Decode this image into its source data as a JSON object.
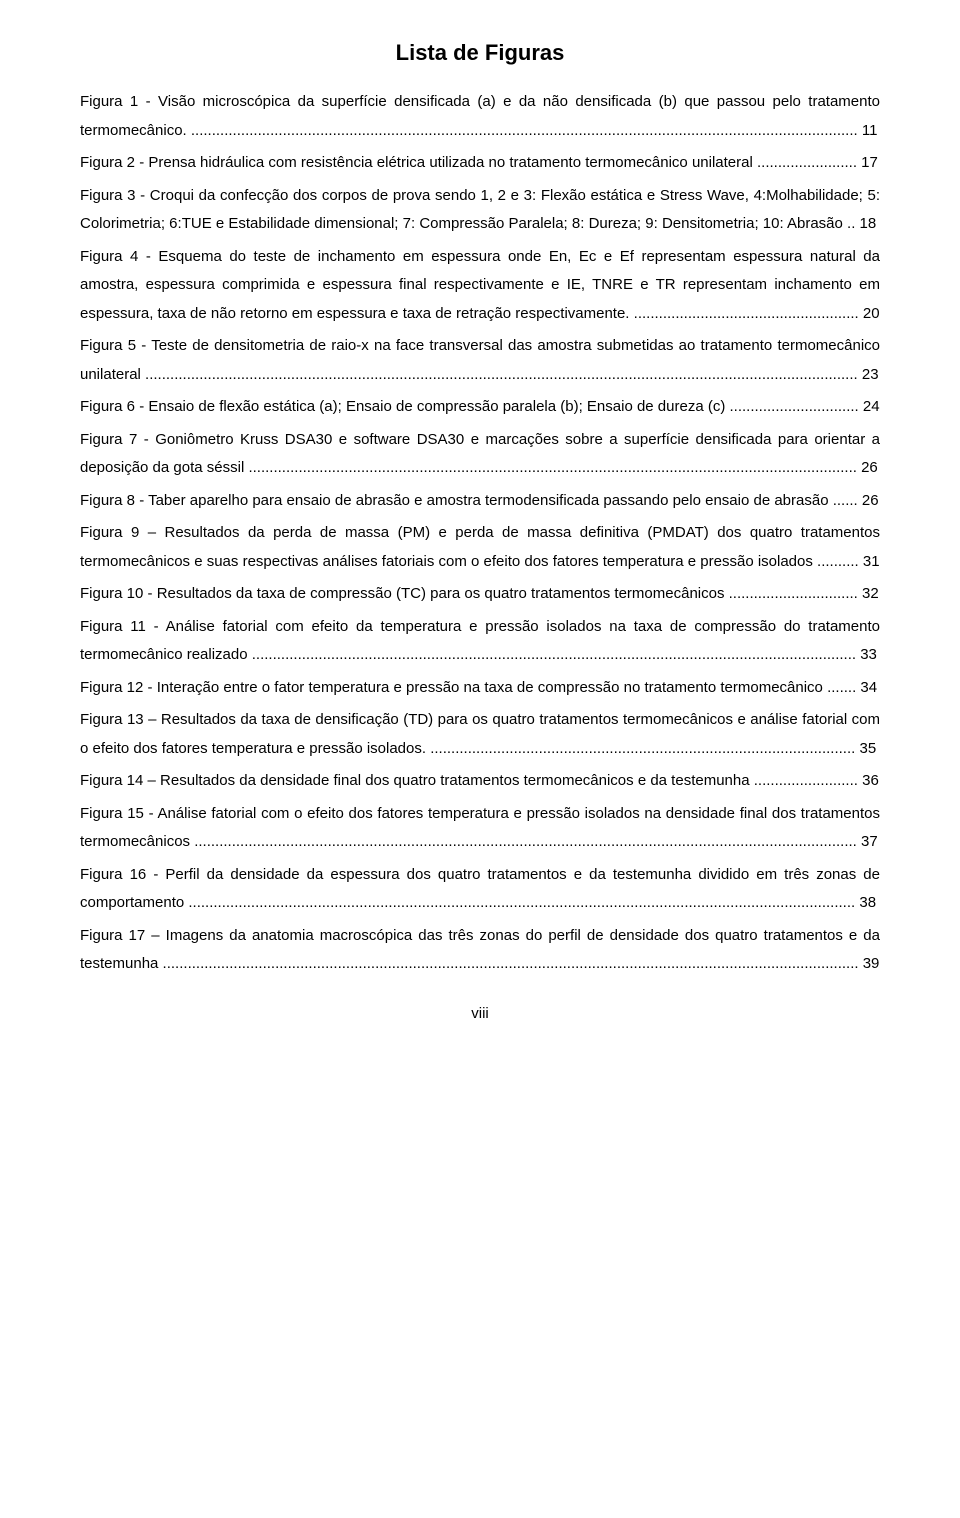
{
  "title": "Lista de Figuras",
  "page_number": "viii",
  "entries": [
    {
      "label": "Figura 1 - Visão microscópica da superfície densificada (a) e da não densificada (b) que passou pelo tratamento termomecânico.",
      "page": "11"
    },
    {
      "label": "Figura 2 - Prensa hidráulica com resistência elétrica utilizada no tratamento termomecânico unilateral",
      "page": "17"
    },
    {
      "label": "Figura 3 - Croqui da confecção dos corpos de prova sendo 1, 2 e 3: Flexão estática e Stress Wave, 4:Molhabilidade; 5: Colorimetria; 6:TUE e Estabilidade dimensional; 7: Compressão Paralela; 8: Dureza; 9: Densitometria; 10: Abrasão",
      "page": "18"
    },
    {
      "label": "Figura 4 - Esquema do teste de inchamento em espessura onde En, Ec e Ef representam espessura natural da amostra, espessura comprimida e espessura final respectivamente e IE, TNRE e TR representam inchamento em espessura, taxa de não retorno em espessura e taxa de retração respectivamente.",
      "page": "20"
    },
    {
      "label": "Figura 5 - Teste de densitometria de raio-x na face transversal das amostra submetidas ao tratamento termomecânico unilateral",
      "page": "23"
    },
    {
      "label": "Figura 6 - Ensaio de flexão estática (a); Ensaio de compressão paralela (b); Ensaio de dureza (c)",
      "page": "24"
    },
    {
      "label": "Figura 7 - Goniômetro  Kruss DSA30 e software DSA30 e marcações sobre a superfície densificada para orientar a deposição da gota séssil",
      "page": "26"
    },
    {
      "label": "Figura 8 - Taber aparelho para ensaio de abrasão e amostra termodensificada passando pelo ensaio de abrasão",
      "page": "26"
    },
    {
      "label": "Figura 9 – Resultados da perda de massa (PM) e perda de massa definitiva (PMDAT) dos quatro tratamentos termomecânicos e suas respectivas análises fatoriais com o efeito dos fatores temperatura e pressão isolados",
      "page": "31"
    },
    {
      "label": "Figura 10 - Resultados da taxa de compressão (TC) para os quatro tratamentos termomecânicos",
      "page": "32"
    },
    {
      "label": "Figura 11 - Análise fatorial com efeito da temperatura e pressão isolados na taxa de compressão do tratamento termomecânico realizado",
      "page": "33"
    },
    {
      "label": "Figura 12 - Interação entre o fator temperatura e pressão na taxa de compressão no tratamento termomecânico",
      "page": "34"
    },
    {
      "label": "Figura 13 – Resultados da taxa de densificação (TD) para os quatro tratamentos termomecânicos e análise fatorial com o efeito dos fatores temperatura e pressão isolados.",
      "page": "35"
    },
    {
      "label": "Figura 14 – Resultados da densidade final dos quatro tratamentos termomecânicos e da testemunha",
      "page": "36"
    },
    {
      "label": "Figura 15 - Análise fatorial com o efeito dos fatores temperatura e pressão isolados na densidade final dos tratamentos termomecânicos",
      "page": "37"
    },
    {
      "label": "Figura 16 - Perfil da densidade da espessura dos quatro tratamentos e da testemunha dividido em três zonas de comportamento",
      "page": "38"
    },
    {
      "label": "Figura 17 – Imagens da anatomia macroscópica das três zonas do perfil de densidade dos quatro tratamentos e da testemunha",
      "page": "39"
    }
  ]
}
